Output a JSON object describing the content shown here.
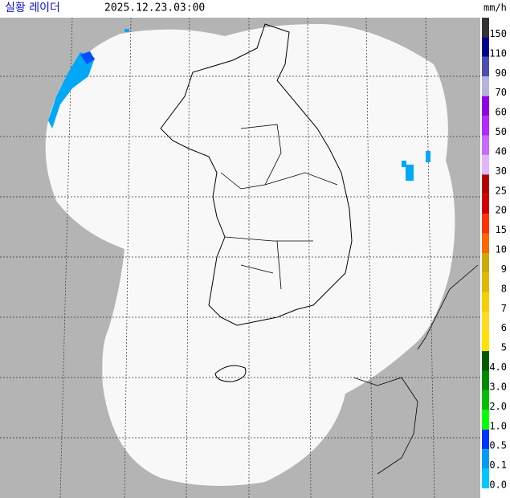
{
  "header": {
    "title": "실황 레이더",
    "time": "2025.12.23.03:00"
  },
  "legend": {
    "unit": "mm/h",
    "items": [
      {
        "label": "150",
        "color": "#333333"
      },
      {
        "label": "110",
        "color": "#000390"
      },
      {
        "label": "90",
        "color": "#4c4eb1"
      },
      {
        "label": "70",
        "color": "#b3b4de"
      },
      {
        "label": "60",
        "color": "#9300e4"
      },
      {
        "label": "50",
        "color": "#b329ff"
      },
      {
        "label": "40",
        "color": "#c969ff"
      },
      {
        "label": "30",
        "color": "#e0b4ff"
      },
      {
        "label": "25",
        "color": "#b40000"
      },
      {
        "label": "20",
        "color": "#d20000"
      },
      {
        "label": "15",
        "color": "#ff3200"
      },
      {
        "label": "10",
        "color": "#ff6600"
      },
      {
        "label": "9",
        "color": "#ccaa00"
      },
      {
        "label": "8",
        "color": "#e0b900"
      },
      {
        "label": "7",
        "color": "#f9cd00"
      },
      {
        "label": "6",
        "color": "#ffdc1f"
      },
      {
        "label": "5",
        "color": "#ffe100"
      },
      {
        "label": "4.0",
        "color": "#005a00"
      },
      {
        "label": "3.0",
        "color": "#008c00"
      },
      {
        "label": "2.0",
        "color": "#00be00"
      },
      {
        "label": "1.0",
        "color": "#00ff00"
      },
      {
        "label": "0.5",
        "color": "#0033ff"
      },
      {
        "label": "0.1",
        "color": "#009bf5"
      },
      {
        "label": "0.0",
        "color": "#00c8ff"
      }
    ]
  }
}
